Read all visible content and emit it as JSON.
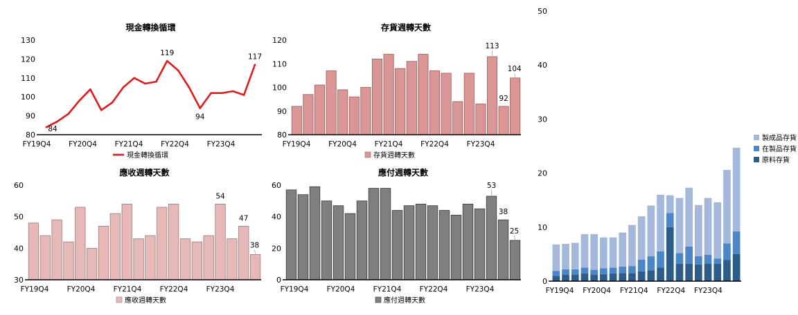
{
  "chart_data": [
    {
      "id": "ccc",
      "type": "line",
      "title": "現金轉換循環",
      "x_ticks": [
        "FY19Q4",
        "FY20Q4",
        "FY21Q4",
        "FY22Q4",
        "FY23Q4"
      ],
      "ylim": [
        80,
        130
      ],
      "y_ticks": [
        80,
        90,
        100,
        110,
        120,
        130
      ],
      "legend": {
        "position": "bottom",
        "entries": [
          "現金轉換循環"
        ]
      },
      "series": [
        {
          "name": "現金轉換循環",
          "color": "#e31a1c",
          "values": [
            84,
            87,
            91,
            98,
            104,
            93,
            97,
            105,
            110,
            107,
            108,
            119,
            114,
            105,
            94,
            102,
            102,
            103,
            101,
            117
          ]
        }
      ],
      "data_labels": [
        {
          "index": 0,
          "text": "84"
        },
        {
          "index": 11,
          "text": "119"
        },
        {
          "index": 14,
          "text": "94"
        },
        {
          "index": 19,
          "text": "117"
        }
      ],
      "grid": false
    },
    {
      "id": "dio",
      "type": "bar",
      "title": "存貨週轉天數",
      "x_ticks": [
        "FY19Q4",
        "FY20Q4",
        "FY21Q4",
        "FY22Q4",
        "FY23Q4"
      ],
      "ylim": [
        80,
        120
      ],
      "y_ticks": [
        80,
        90,
        100,
        110,
        120
      ],
      "legend": {
        "position": "bottom",
        "entries": [
          "存貨週轉天數"
        ]
      },
      "series": [
        {
          "name": "存貨週轉天數",
          "color": "#d99694",
          "edge": "#9e5a58",
          "values": [
            92,
            97,
            101,
            107,
            99,
            96,
            100,
            112,
            114,
            108,
            111,
            114,
            107,
            106,
            94,
            106,
            93,
            113,
            92,
            104
          ]
        }
      ],
      "data_labels": [
        {
          "index": 17,
          "text": "113"
        },
        {
          "index": 18,
          "text": "92"
        },
        {
          "index": 19,
          "text": "104"
        }
      ],
      "grid": false
    },
    {
      "id": "inventory",
      "type": "bar",
      "stacked": true,
      "title": "",
      "x_ticks": [
        "FY19Q4",
        "FY20Q4",
        "FY21Q4",
        "FY22Q4",
        "FY23Q4"
      ],
      "ylim": [
        0,
        50
      ],
      "y_ticks": [
        0,
        10,
        20,
        30,
        40,
        50
      ],
      "legend": {
        "position": "right",
        "entries": [
          "製成品存貨",
          "在製品存貨",
          "原料存貨"
        ]
      },
      "series": [
        {
          "name": "原料存貨",
          "color": "#2e5c8a",
          "values": [
            1.0,
            1.2,
            1.2,
            1.4,
            1.2,
            1.3,
            1.4,
            1.5,
            1.5,
            1.8,
            2.0,
            2.5,
            10.0,
            3.2,
            3.2,
            3.1,
            3.2,
            3.2,
            3.9,
            5.0
          ]
        },
        {
          "name": "在製品存貨",
          "color": "#4a86c8",
          "values": [
            0.9,
            1.0,
            1.0,
            1.1,
            0.9,
            1.1,
            1.1,
            1.2,
            1.3,
            2.2,
            2.6,
            3.0,
            2.6,
            2.0,
            3.2,
            1.5,
            1.7,
            1.0,
            3.1,
            4.2
          ]
        },
        {
          "name": "製成品存貨",
          "color": "#a4b8dc",
          "values": [
            4.9,
            4.7,
            4.9,
            6.2,
            6.6,
            5.7,
            5.6,
            6.3,
            7.6,
            8.0,
            9.4,
            10.5,
            3.3,
            10.2,
            10.9,
            9.5,
            10.5,
            10.4,
            13.6,
            15.5
          ]
        }
      ],
      "grid": false
    },
    {
      "id": "dso",
      "type": "bar",
      "title": "應收週轉天數",
      "x_ticks": [
        "FY19Q4",
        "FY20Q4",
        "FY21Q4",
        "FY22Q4",
        "FY23Q4"
      ],
      "ylim": [
        30,
        60
      ],
      "y_ticks": [
        30,
        40,
        50,
        60
      ],
      "legend": {
        "position": "bottom",
        "entries": [
          "應收週轉天數"
        ]
      },
      "series": [
        {
          "name": "應收週轉天數",
          "color": "#e6b9b8",
          "edge": "#a07a79",
          "values": [
            48,
            44,
            49,
            42,
            53,
            40,
            47,
            51,
            54,
            43,
            44,
            53,
            54,
            43,
            42,
            44,
            54,
            43,
            47,
            38
          ]
        }
      ],
      "data_labels": [
        {
          "index": 16,
          "text": "54"
        },
        {
          "index": 18,
          "text": "47"
        },
        {
          "index": 19,
          "text": "38"
        }
      ],
      "grid": false
    },
    {
      "id": "dpo",
      "type": "bar",
      "title": "應付週轉天數",
      "x_ticks": [
        "FY19Q4",
        "FY20Q4",
        "FY21Q4",
        "FY22Q4",
        "FY23Q4"
      ],
      "ylim": [
        0,
        60
      ],
      "y_ticks": [
        0,
        20,
        40,
        60
      ],
      "legend": {
        "position": "bottom",
        "entries": [
          "應付週轉天數"
        ]
      },
      "series": [
        {
          "name": "應付週轉天數",
          "color": "#7f7f7f",
          "edge": "#3a3a3a",
          "values": [
            57,
            54,
            59,
            50,
            47,
            42,
            50,
            58,
            58,
            44,
            47,
            48,
            47,
            44,
            41,
            48,
            45,
            53,
            38,
            25
          ]
        }
      ],
      "data_labels": [
        {
          "index": 17,
          "text": "53"
        },
        {
          "index": 18,
          "text": "38"
        },
        {
          "index": 19,
          "text": "25"
        }
      ],
      "grid": false
    }
  ]
}
